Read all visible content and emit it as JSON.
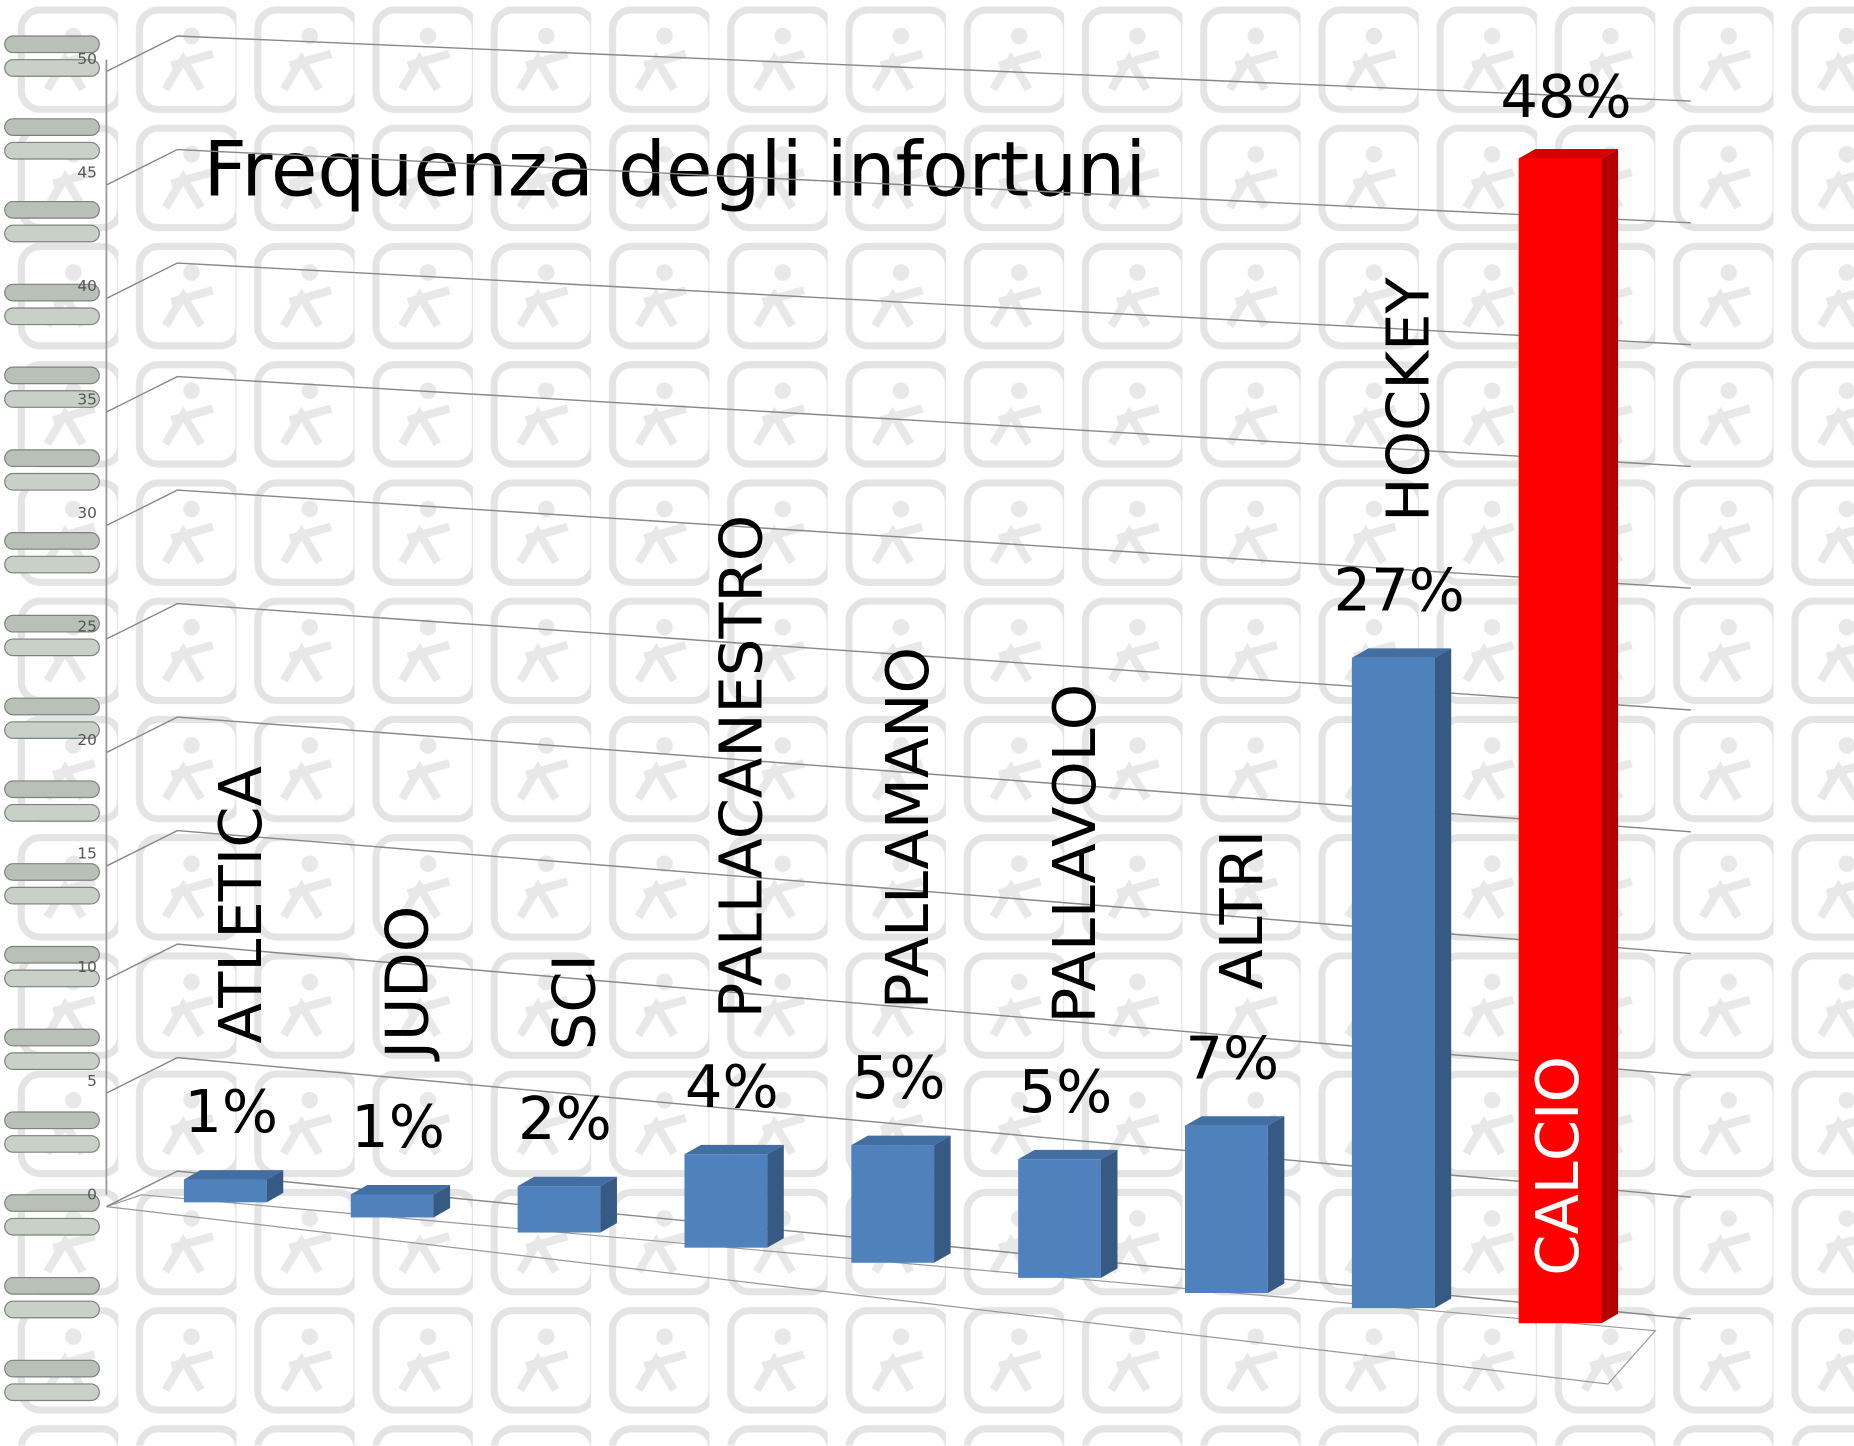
{
  "chart_data": {
    "type": "bar",
    "title": "Frequenza degli infortuni",
    "categories": [
      "ATLETICA",
      "JUDO",
      "SCI",
      "PALLACANESTRO",
      "PALLAMANO",
      "PALLAVOLO",
      "ALTRI",
      "HOCKEY",
      "CALCIO"
    ],
    "values": [
      1,
      1,
      2,
      4,
      5,
      5,
      7,
      27,
      48
    ],
    "value_labels": [
      "1%",
      "1%",
      "2%",
      "4%",
      "5%",
      "5%",
      "7%",
      "27%",
      "48%"
    ],
    "colors": [
      "#4f81bd",
      "#4f81bd",
      "#4f81bd",
      "#4f81bd",
      "#4f81bd",
      "#4f81bd",
      "#4f81bd",
      "#4f81bd",
      "#ff0000"
    ],
    "ylim": [
      0,
      50
    ],
    "yticks": [
      0,
      5,
      10,
      15,
      20,
      25,
      30,
      35,
      40,
      45,
      50
    ],
    "grid": true
  }
}
